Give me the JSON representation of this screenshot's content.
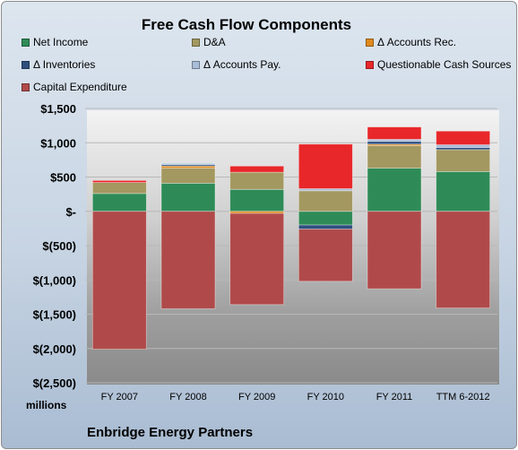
{
  "chart_data": {
    "type": "bar",
    "stacked": true,
    "title": "Free Cash Flow Components",
    "subtitle": "Enbridge Energy Partners",
    "units_label": "millions",
    "categories": [
      "FY 2007",
      "FY 2008",
      "FY 2009",
      "FY 2010",
      "FY 2011",
      "TTM 6-2012"
    ],
    "ylim": [
      -2500,
      1500
    ],
    "yticks": [
      1500,
      1000,
      500,
      0,
      -500,
      -1000,
      -1500,
      -2000,
      -2500
    ],
    "ytick_labels": [
      "$1,500",
      "$1,000",
      "$500",
      "$-",
      "$(500)",
      "$(1,000)",
      "$(1,500)",
      "$(2,000)",
      "$(2,500)"
    ],
    "grid": true,
    "legend_position": "top",
    "series": [
      {
        "name": "Net Income",
        "color": "#2e8b57",
        "values": [
          260,
          410,
          320,
          -200,
          630,
          580
        ]
      },
      {
        "name": "D&A",
        "color": "#a39860",
        "values": [
          160,
          220,
          250,
          300,
          330,
          320
        ]
      },
      {
        "name": "Δ Accounts Rec.",
        "color": "#e08a1e",
        "values": [
          0,
          30,
          -30,
          0,
          20,
          0
        ]
      },
      {
        "name": "Δ Inventories",
        "color": "#2f4f7f",
        "values": [
          0,
          20,
          0,
          -60,
          40,
          30
        ]
      },
      {
        "name": "Δ Accounts Pay.",
        "color": "#a9bdd8",
        "values": [
          0,
          20,
          0,
          30,
          30,
          40
        ]
      },
      {
        "name": "Questionable Cash Sources",
        "color": "#e8272a",
        "values": [
          30,
          0,
          90,
          650,
          180,
          200
        ]
      },
      {
        "name": "Capital Expenditure",
        "color": "#b04a4a",
        "values": [
          -2010,
          -1420,
          -1330,
          -760,
          -1130,
          -1410
        ]
      }
    ]
  }
}
